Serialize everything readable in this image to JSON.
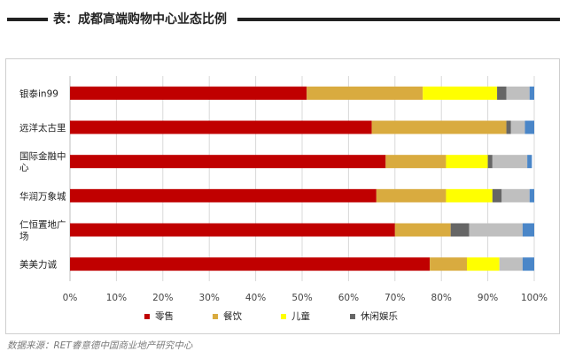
{
  "title": "表：成都高端购物中心业态比例",
  "source_note": "数据来源：RET睿意德中国商业地产研究中心",
  "chart_data": {
    "type": "bar",
    "orientation": "horizontal",
    "stacked": true,
    "percent": true,
    "categories": [
      "银泰in99",
      "远洋太古里",
      "国际金融中心",
      "华润万象城",
      "仁恒置地广场",
      "美美力诚"
    ],
    "category_display": [
      [
        "银泰in99"
      ],
      [
        "远洋太古里"
      ],
      [
        "国际金融中",
        "心"
      ],
      [
        "华润万象城"
      ],
      [
        "仁恒置地广",
        "场"
      ],
      [
        "美美力诚"
      ]
    ],
    "series": [
      {
        "name": "零售",
        "color": "#c00000",
        "values": [
          51,
          65,
          68,
          66,
          70,
          77.5
        ]
      },
      {
        "name": "餐饮",
        "color": "#d9ab3f",
        "values": [
          25,
          29,
          13,
          15,
          12,
          8
        ]
      },
      {
        "name": "儿童",
        "color": "#ffff00",
        "values": [
          16,
          0,
          9,
          10,
          0,
          7
        ]
      },
      {
        "name": "休闲娱乐",
        "color": "#666666",
        "values": [
          2,
          1,
          1,
          2,
          4,
          0
        ]
      },
      {
        "name": "",
        "color": "#bfbfbf",
        "values": [
          5,
          3,
          7.5,
          6,
          11.5,
          5
        ]
      },
      {
        "name": "",
        "color": "#4a86c8",
        "values": [
          1,
          2,
          1,
          1,
          2.5,
          2.5
        ]
      }
    ],
    "xlim": [
      0,
      100
    ],
    "xticks": [
      "0%",
      "10%",
      "20%",
      "30%",
      "40%",
      "50%",
      "60%",
      "70%",
      "80%",
      "90%",
      "100%"
    ],
    "grid": true,
    "legend": "bottom"
  }
}
